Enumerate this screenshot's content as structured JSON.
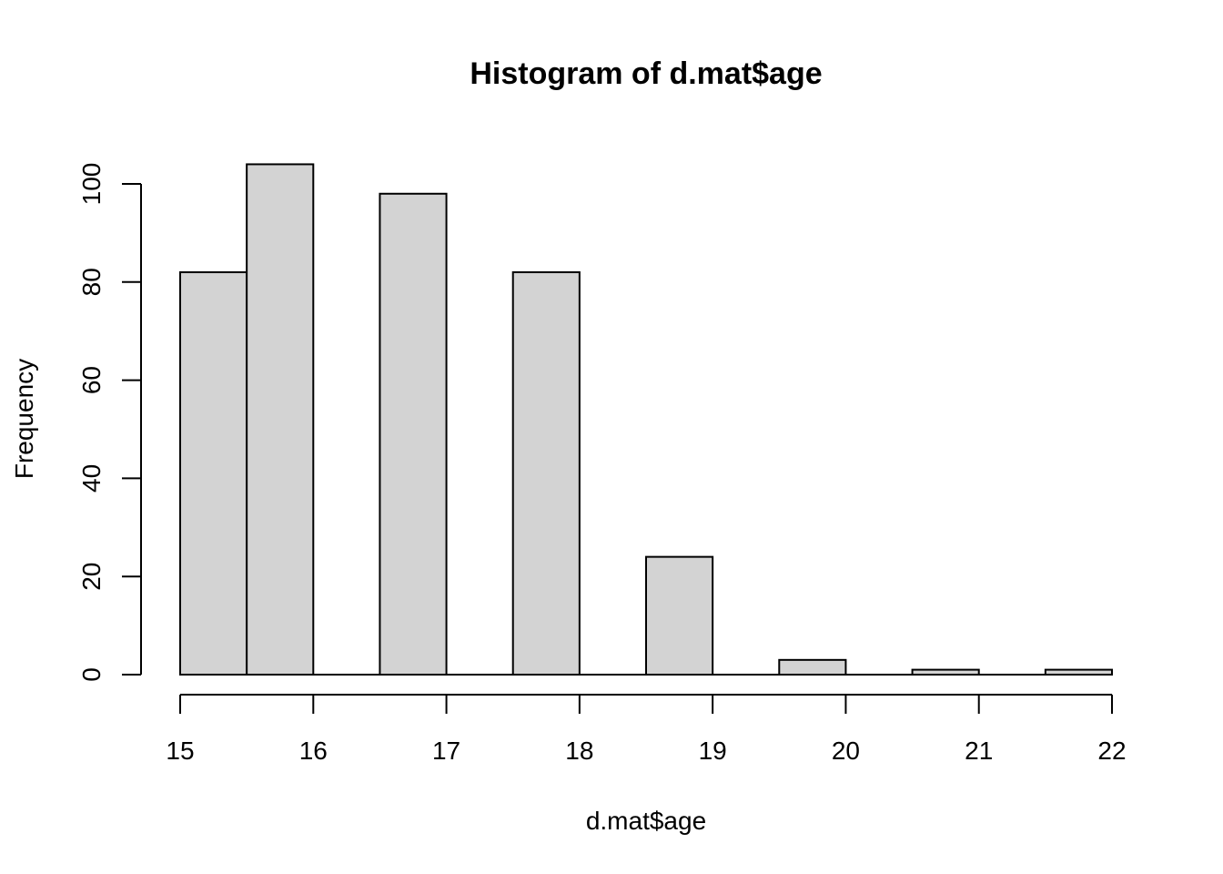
{
  "chart_data": {
    "type": "bar",
    "title": "Histogram of d.mat$age",
    "xlabel": "d.mat$age",
    "ylabel": "Frequency",
    "bins": [
      {
        "start": 15.0,
        "end": 15.5,
        "count": 82
      },
      {
        "start": 15.5,
        "end": 16.0,
        "count": 104
      },
      {
        "start": 16.0,
        "end": 16.5,
        "count": 0
      },
      {
        "start": 16.5,
        "end": 17.0,
        "count": 98
      },
      {
        "start": 17.0,
        "end": 17.5,
        "count": 0
      },
      {
        "start": 17.5,
        "end": 18.0,
        "count": 82
      },
      {
        "start": 18.0,
        "end": 18.5,
        "count": 0
      },
      {
        "start": 18.5,
        "end": 19.0,
        "count": 24
      },
      {
        "start": 19.0,
        "end": 19.5,
        "count": 0
      },
      {
        "start": 19.5,
        "end": 20.0,
        "count": 3
      },
      {
        "start": 20.0,
        "end": 20.5,
        "count": 0
      },
      {
        "start": 20.5,
        "end": 21.0,
        "count": 1
      },
      {
        "start": 21.0,
        "end": 21.5,
        "count": 0
      },
      {
        "start": 21.5,
        "end": 22.0,
        "count": 1
      }
    ],
    "xlim": [
      15,
      22
    ],
    "ylim": [
      0,
      104
    ],
    "x_ticks": [
      "15",
      "16",
      "17",
      "18",
      "19",
      "20",
      "21",
      "22"
    ],
    "y_ticks": [
      "0",
      "20",
      "40",
      "60",
      "80",
      "100"
    ],
    "grid": false,
    "bar_color": "#d3d3d3",
    "edge_color": "#000000"
  }
}
